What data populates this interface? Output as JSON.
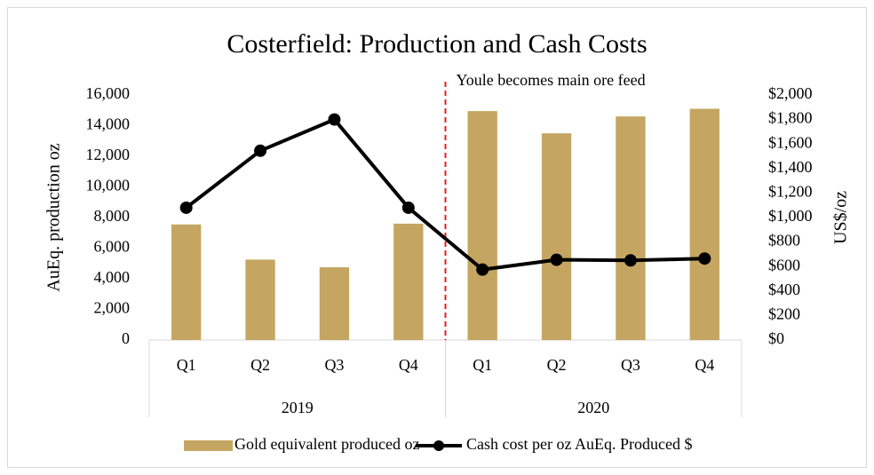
{
  "chart_data": {
    "type": "bar-line",
    "title": "Costerfield: Production and Cash Costs",
    "groups": [
      {
        "label": "2019",
        "categories": [
          "Q1",
          "Q2",
          "Q3",
          "Q4"
        ]
      },
      {
        "label": "2020",
        "categories": [
          "Q1",
          "Q2",
          "Q3",
          "Q4"
        ]
      }
    ],
    "series": [
      {
        "name": "Gold equivalent produced oz",
        "type": "bar",
        "color": "#c4a662",
        "values": [
          7550,
          5250,
          4750,
          7600,
          14950,
          13500,
          14600,
          15100
        ]
      },
      {
        "name": "Cash cost per oz AuEq. Produced $",
        "type": "line",
        "axis": "y2",
        "color": "#000000",
        "values": [
          1080,
          1545,
          1800,
          1080,
          575,
          655,
          650,
          665
        ]
      }
    ],
    "ylabel": "AuEq. production oz",
    "y2label": "US$/oz",
    "ylim": [
      0,
      16000
    ],
    "yticks": [
      0,
      {
        "value": 2000,
        "label": "2,000"
      },
      {
        "value": 4000,
        "label": "4,000"
      },
      {
        "value": 6000,
        "label": "6,000"
      },
      {
        "value": 8000,
        "label": "8,000"
      },
      {
        "value": 10000,
        "label": "10,000"
      },
      {
        "value": 12000,
        "label": "12,000"
      },
      {
        "value": 14000,
        "label": "14,000"
      },
      {
        "value": 16000,
        "label": "16,000"
      }
    ],
    "y2lim": [
      0,
      2000
    ],
    "y2ticks": [
      {
        "value": 0,
        "label": "$0"
      },
      {
        "value": 200,
        "label": "$200"
      },
      {
        "value": 400,
        "label": "$400"
      },
      {
        "value": 600,
        "label": "$600"
      },
      {
        "value": 800,
        "label": "$800"
      },
      {
        "value": 1000,
        "label": "$1,000"
      },
      {
        "value": 1200,
        "label": "$1,200"
      },
      {
        "value": 1400,
        "label": "$1,400"
      },
      {
        "value": 1600,
        "label": "$1,600"
      },
      {
        "value": 1800,
        "label": "$1,800"
      },
      {
        "value": 2000,
        "label": "$2,000"
      }
    ],
    "annotation": {
      "text": "Youle becomes main ore feed",
      "color": "#e02020"
    },
    "grid": false,
    "legend": "bottom"
  }
}
